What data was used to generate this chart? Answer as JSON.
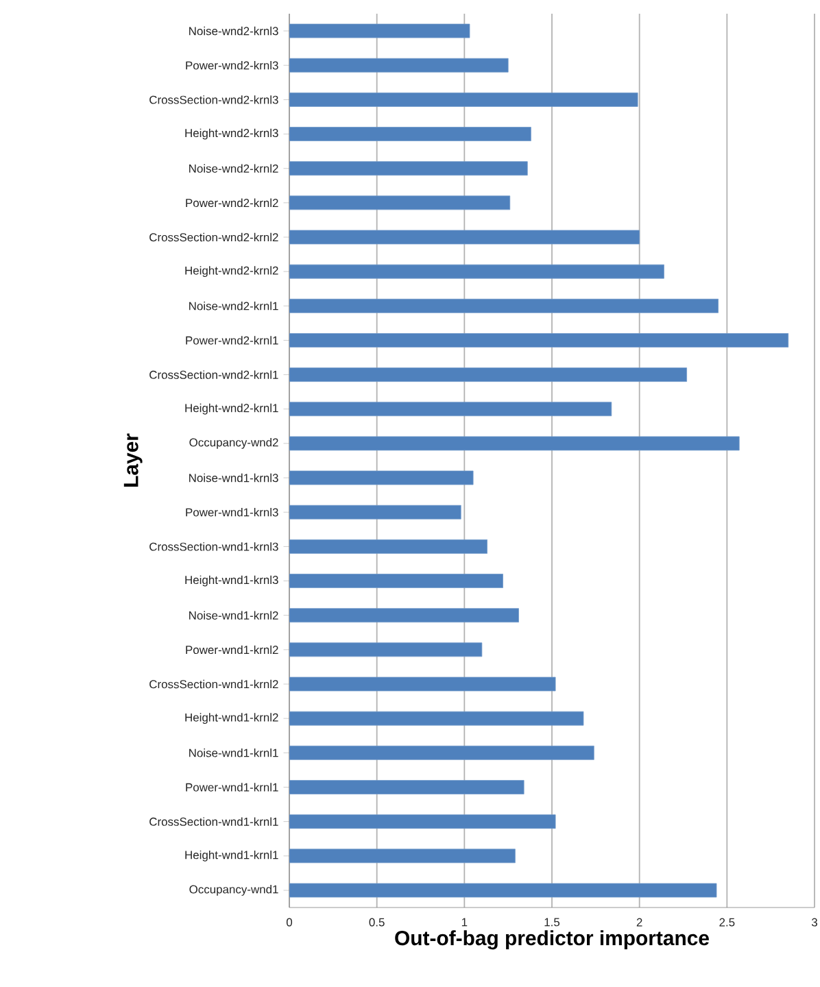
{
  "chart_data": {
    "type": "bar",
    "orientation": "horizontal",
    "xlabel": "Out-of-bag predictor importance",
    "ylabel": "Layer",
    "categories": [
      "Noise-wnd2-krnl3",
      "Power-wnd2-krnl3",
      "CrossSection-wnd2-krnl3",
      "Height-wnd2-krnl3",
      "Noise-wnd2-krnl2",
      "Power-wnd2-krnl2",
      "CrossSection-wnd2-krnl2",
      "Height-wnd2-krnl2",
      "Noise-wnd2-krnl1",
      "Power-wnd2-krnl1",
      "CrossSection-wnd2-krnl1",
      "Height-wnd2-krnl1",
      "Occupancy-wnd2",
      "Noise-wnd1-krnl3",
      "Power-wnd1-krnl3",
      "CrossSection-wnd1-krnl3",
      "Height-wnd1-krnl3",
      "Noise-wnd1-krnl2",
      "Power-wnd1-krnl2",
      "CrossSection-wnd1-krnl2",
      "Height-wnd1-krnl2",
      "Noise-wnd1-krnl1",
      "Power-wnd1-krnl1",
      "CrossSection-wnd1-krnl1",
      "Height-wnd1-krnl1",
      "Occupancy-wnd1"
    ],
    "values": [
      1.03,
      1.25,
      1.99,
      1.38,
      1.36,
      1.26,
      2.0,
      2.14,
      2.45,
      2.85,
      2.27,
      1.84,
      2.57,
      1.05,
      0.98,
      1.13,
      1.22,
      1.31,
      1.1,
      1.52,
      1.68,
      1.74,
      1.34,
      1.52,
      1.29,
      2.44
    ],
    "color": "#4f81bd",
    "xlim": [
      0,
      3
    ],
    "xticks": [
      0,
      0.5,
      1,
      1.5,
      2,
      2.5,
      3
    ],
    "grid": "x"
  }
}
